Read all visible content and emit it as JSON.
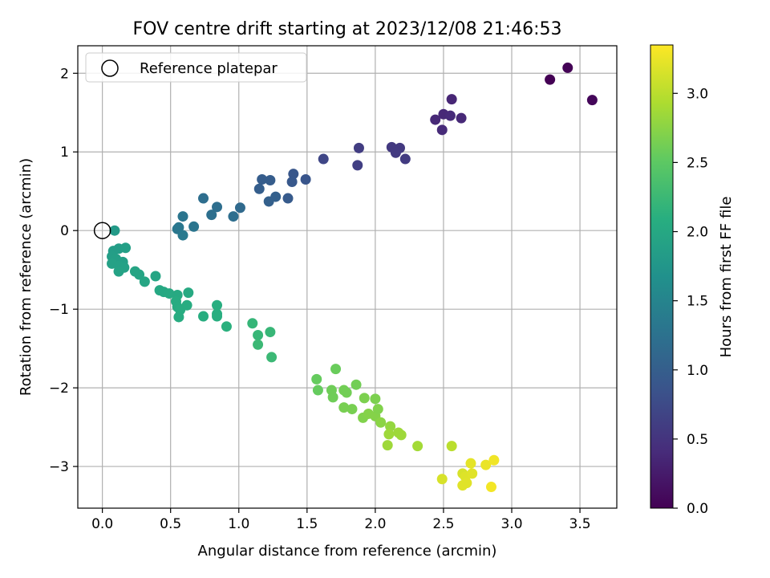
{
  "chart_data": {
    "type": "scatter",
    "title": "FOV centre drift starting at 2023/12/08 21:46:53",
    "xlabel": "Angular distance from reference (arcmin)",
    "ylabel": "Rotation from reference (arcmin)",
    "xlim": [
      -0.18,
      3.77
    ],
    "ylim": [
      -3.53,
      2.35
    ],
    "xticks": [
      0.0,
      0.5,
      1.0,
      1.5,
      2.0,
      2.5,
      3.0,
      3.5
    ],
    "xtick_labels": [
      "0.0",
      "0.5",
      "1.0",
      "1.5",
      "2.0",
      "2.5",
      "3.0",
      "3.5"
    ],
    "yticks": [
      2,
      1,
      0,
      -1,
      -2,
      -3
    ],
    "ytick_labels": [
      "2",
      "1",
      "0",
      "−1",
      "−2",
      "−3"
    ],
    "grid": true,
    "legend": {
      "position": "top-left",
      "entries": [
        "Reference platepar"
      ]
    },
    "reference_point": {
      "x": 0.0,
      "y": 0.0,
      "label": "Reference platepar"
    },
    "colorbar": {
      "label": "Hours from first FF file",
      "colormap": "viridis",
      "range": [
        0.0,
        3.35
      ],
      "ticks": [
        0.0,
        0.5,
        1.0,
        1.5,
        2.0,
        2.5,
        3.0
      ],
      "tick_labels": [
        "0.0",
        "0.5",
        "1.0",
        "1.5",
        "2.0",
        "2.5",
        "3.0"
      ]
    },
    "points": [
      [
        3.28,
        1.92,
        0.0
      ],
      [
        3.41,
        2.07,
        0.02
      ],
      [
        3.59,
        1.66,
        0.05
      ],
      [
        2.56,
        1.67,
        0.35
      ],
      [
        2.44,
        1.41,
        0.38
      ],
      [
        2.5,
        1.48,
        0.38
      ],
      [
        2.55,
        1.46,
        0.4
      ],
      [
        2.63,
        1.43,
        0.38
      ],
      [
        2.49,
        1.28,
        0.4
      ],
      [
        2.12,
        1.06,
        0.55
      ],
      [
        2.18,
        1.05,
        0.55
      ],
      [
        2.15,
        0.99,
        0.57
      ],
      [
        2.22,
        0.91,
        0.58
      ],
      [
        1.88,
        1.05,
        0.6
      ],
      [
        1.87,
        0.83,
        0.62
      ],
      [
        1.62,
        0.91,
        0.7
      ],
      [
        1.4,
        0.72,
        0.9
      ],
      [
        1.39,
        0.62,
        0.92
      ],
      [
        1.49,
        0.65,
        0.88
      ],
      [
        1.36,
        0.41,
        0.95
      ],
      [
        1.17,
        0.65,
        0.98
      ],
      [
        1.23,
        0.64,
        0.98
      ],
      [
        1.15,
        0.53,
        1.0
      ],
      [
        1.27,
        0.43,
        1.02
      ],
      [
        1.22,
        0.37,
        1.02
      ],
      [
        0.74,
        0.41,
        1.2
      ],
      [
        0.84,
        0.3,
        1.2
      ],
      [
        1.01,
        0.29,
        1.15
      ],
      [
        0.8,
        0.2,
        1.22
      ],
      [
        0.96,
        0.18,
        1.2
      ],
      [
        0.59,
        0.18,
        1.3
      ],
      [
        0.55,
        0.02,
        1.33
      ],
      [
        0.56,
        0.04,
        1.33
      ],
      [
        0.59,
        -0.06,
        1.35
      ],
      [
        0.67,
        0.05,
        1.3
      ],
      [
        0.09,
        0.0,
        1.8
      ],
      [
        0.08,
        -0.26,
        1.85
      ],
      [
        0.12,
        -0.23,
        1.85
      ],
      [
        0.17,
        -0.22,
        1.88
      ],
      [
        0.07,
        -0.33,
        1.86
      ],
      [
        0.1,
        -0.36,
        1.88
      ],
      [
        0.15,
        -0.4,
        1.88
      ],
      [
        0.07,
        -0.42,
        1.9
      ],
      [
        0.12,
        -0.45,
        1.9
      ],
      [
        0.16,
        -0.47,
        1.9
      ],
      [
        0.12,
        -0.52,
        1.92
      ],
      [
        0.24,
        -0.52,
        1.95
      ],
      [
        0.27,
        -0.56,
        1.95
      ],
      [
        0.31,
        -0.65,
        1.97
      ],
      [
        0.39,
        -0.58,
        1.97
      ],
      [
        0.42,
        -0.76,
        2.0
      ],
      [
        0.45,
        -0.78,
        2.0
      ],
      [
        0.49,
        -0.8,
        2.02
      ],
      [
        0.55,
        -0.82,
        2.02
      ],
      [
        0.63,
        -0.79,
        2.02
      ],
      [
        0.54,
        -0.9,
        2.05
      ],
      [
        0.55,
        -0.97,
        2.05
      ],
      [
        0.57,
        -1.01,
        2.07
      ],
      [
        0.62,
        -0.95,
        2.07
      ],
      [
        0.56,
        -1.1,
        2.07
      ],
      [
        0.74,
        -1.09,
        2.08
      ],
      [
        0.84,
        -0.95,
        2.1
      ],
      [
        0.84,
        -1.06,
        2.1
      ],
      [
        0.84,
        -1.09,
        2.1
      ],
      [
        0.91,
        -1.22,
        2.12
      ],
      [
        1.1,
        -1.18,
        2.2
      ],
      [
        1.14,
        -1.33,
        2.22
      ],
      [
        1.23,
        -1.29,
        2.22
      ],
      [
        1.14,
        -1.45,
        2.25
      ],
      [
        1.24,
        -1.61,
        2.25
      ],
      [
        1.57,
        -1.89,
        2.55
      ],
      [
        1.58,
        -2.03,
        2.55
      ],
      [
        1.71,
        -1.76,
        2.57
      ],
      [
        1.68,
        -2.03,
        2.6
      ],
      [
        1.69,
        -2.12,
        2.6
      ],
      [
        1.77,
        -2.03,
        2.62
      ],
      [
        1.79,
        -2.06,
        2.62
      ],
      [
        1.86,
        -1.96,
        2.62
      ],
      [
        1.77,
        -2.25,
        2.65
      ],
      [
        1.83,
        -2.27,
        2.65
      ],
      [
        1.92,
        -2.13,
        2.67
      ],
      [
        2.0,
        -2.14,
        2.67
      ],
      [
        1.91,
        -2.38,
        2.7
      ],
      [
        1.95,
        -2.33,
        2.72
      ],
      [
        2.0,
        -2.36,
        2.72
      ],
      [
        2.02,
        -2.27,
        2.7
      ],
      [
        2.04,
        -2.44,
        2.75
      ],
      [
        2.11,
        -2.49,
        2.8
      ],
      [
        2.1,
        -2.59,
        2.85
      ],
      [
        2.17,
        -2.57,
        2.85
      ],
      [
        2.19,
        -2.6,
        2.85
      ],
      [
        2.09,
        -2.73,
        2.85
      ],
      [
        2.31,
        -2.74,
        2.88
      ],
      [
        2.56,
        -2.74,
        3.0
      ],
      [
        2.49,
        -3.16,
        3.15
      ],
      [
        2.64,
        -3.09,
        3.15
      ],
      [
        2.66,
        -3.13,
        3.18
      ],
      [
        2.64,
        -3.24,
        3.2
      ],
      [
        2.67,
        -3.21,
        3.2
      ],
      [
        2.71,
        -3.09,
        3.2
      ],
      [
        2.7,
        -2.96,
        3.22
      ],
      [
        2.81,
        -2.98,
        3.25
      ],
      [
        2.87,
        -2.92,
        3.28
      ],
      [
        2.85,
        -3.26,
        3.3
      ]
    ]
  }
}
